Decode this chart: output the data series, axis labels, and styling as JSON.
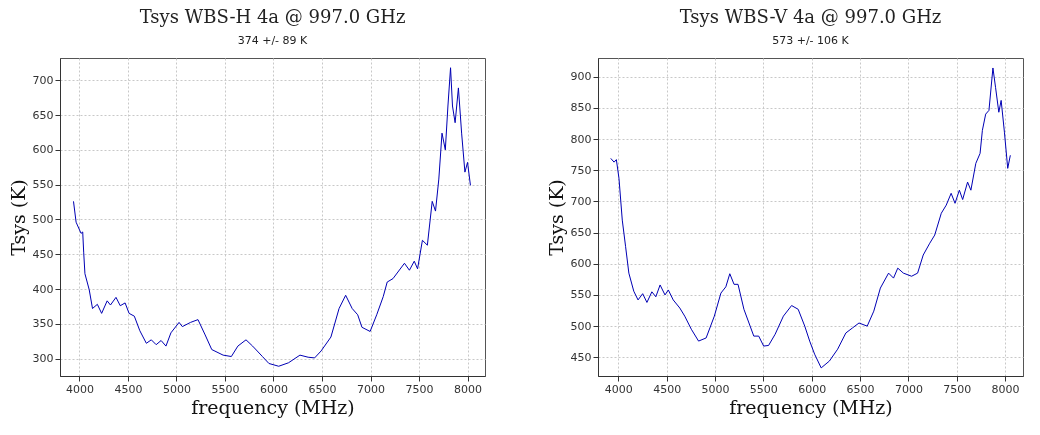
{
  "chart_data": [
    {
      "type": "line",
      "title": "Tsys WBS-H 4a @ 997.0 GHz",
      "subtitle": "374 +/- 89 K",
      "xlabel": "frequency (MHz)",
      "ylabel": "Tsys (K)",
      "color": "#0000b4",
      "grid": true,
      "xlim": [
        3800,
        8180
      ],
      "ylim": [
        275,
        732
      ],
      "xticks": [
        4000,
        4500,
        5000,
        5500,
        6000,
        6500,
        7000,
        7500,
        8000
      ],
      "yticks": [
        300,
        350,
        400,
        450,
        500,
        550,
        600,
        650,
        700
      ],
      "x": [
        3939,
        3966,
        4017,
        4034,
        4044,
        4057,
        4101,
        4135,
        4185,
        4229,
        4286,
        4320,
        4377,
        4421,
        4471,
        4512,
        4566,
        4623,
        4690,
        4741,
        4791,
        4842,
        4892,
        4943,
        5027,
        5061,
        5145,
        5222,
        5296,
        5364,
        5481,
        5566,
        5633,
        5717,
        5785,
        5886,
        5953,
        6054,
        6155,
        6273,
        6357,
        6424,
        6491,
        6592,
        6676,
        6744,
        6811,
        6868,
        6912,
        6996,
        7064,
        7131,
        7172,
        7232,
        7350,
        7401,
        7451,
        7485,
        7535,
        7586,
        7636,
        7670,
        7704,
        7737,
        7771,
        7798,
        7825,
        7845,
        7872,
        7906,
        7939,
        7973,
        8000,
        8030
      ],
      "values": [
        526,
        496,
        480,
        482,
        453,
        422,
        399,
        372,
        378,
        365,
        383,
        377,
        388,
        376,
        380,
        365,
        361,
        340,
        322,
        327,
        320,
        326,
        318,
        337,
        352,
        346,
        352,
        356,
        334,
        313,
        305,
        303,
        318,
        327,
        318,
        303,
        293,
        289,
        294,
        305,
        302,
        301,
        311,
        331,
        372,
        391,
        372,
        363,
        345,
        339,
        363,
        389,
        410,
        415,
        437,
        427,
        440,
        429,
        470,
        463,
        526,
        512,
        558,
        624,
        600,
        663,
        718,
        663,
        639,
        689,
        624,
        568,
        582,
        549
      ]
    },
    {
      "type": "line",
      "title": "Tsys WBS-V 4a @ 997.0 GHz",
      "subtitle": "573 +/- 106 K",
      "xlabel": "frequency (MHz)",
      "ylabel": "Tsys (K)",
      "color": "#0000b4",
      "grid": true,
      "xlim": [
        3790,
        8185
      ],
      "ylim": [
        420,
        930
      ],
      "xticks": [
        4000,
        4500,
        5000,
        5500,
        6000,
        6500,
        7000,
        7500,
        8000
      ],
      "yticks": [
        450,
        500,
        550,
        600,
        650,
        700,
        750,
        800,
        850,
        900
      ],
      "x": [
        3922,
        3956,
        3980,
        4007,
        4041,
        4075,
        4109,
        4160,
        4204,
        4252,
        4296,
        4347,
        4388,
        4432,
        4483,
        4517,
        4568,
        4636,
        4687,
        4755,
        4830,
        4908,
        4993,
        5061,
        5112,
        5153,
        5197,
        5238,
        5299,
        5401,
        5452,
        5503,
        5554,
        5622,
        5707,
        5792,
        5860,
        5928,
        5979,
        6030,
        6098,
        6183,
        6268,
        6353,
        6421,
        6489,
        6574,
        6642,
        6710,
        6795,
        6846,
        6890,
        6948,
        7033,
        7095,
        7153,
        7221,
        7272,
        7340,
        7391,
        7442,
        7482,
        7527,
        7561,
        7612,
        7646,
        7697,
        7741,
        7765,
        7799,
        7833,
        7874,
        7901,
        7935,
        7959,
        7993,
        8027,
        8054
      ],
      "values": [
        769,
        763,
        767,
        737,
        670,
        628,
        585,
        556,
        542,
        552,
        538,
        555,
        547,
        566,
        550,
        558,
        542,
        529,
        516,
        495,
        476,
        481,
        516,
        553,
        563,
        584,
        567,
        567,
        527,
        484,
        484,
        468,
        469,
        487,
        516,
        533,
        527,
        500,
        476,
        455,
        433,
        444,
        463,
        489,
        497,
        505,
        500,
        524,
        561,
        585,
        577,
        593,
        585,
        580,
        585,
        614,
        633,
        646,
        681,
        694,
        713,
        697,
        718,
        703,
        731,
        718,
        761,
        777,
        814,
        840,
        846,
        914,
        883,
        843,
        862,
        811,
        753,
        774
      ]
    }
  ]
}
